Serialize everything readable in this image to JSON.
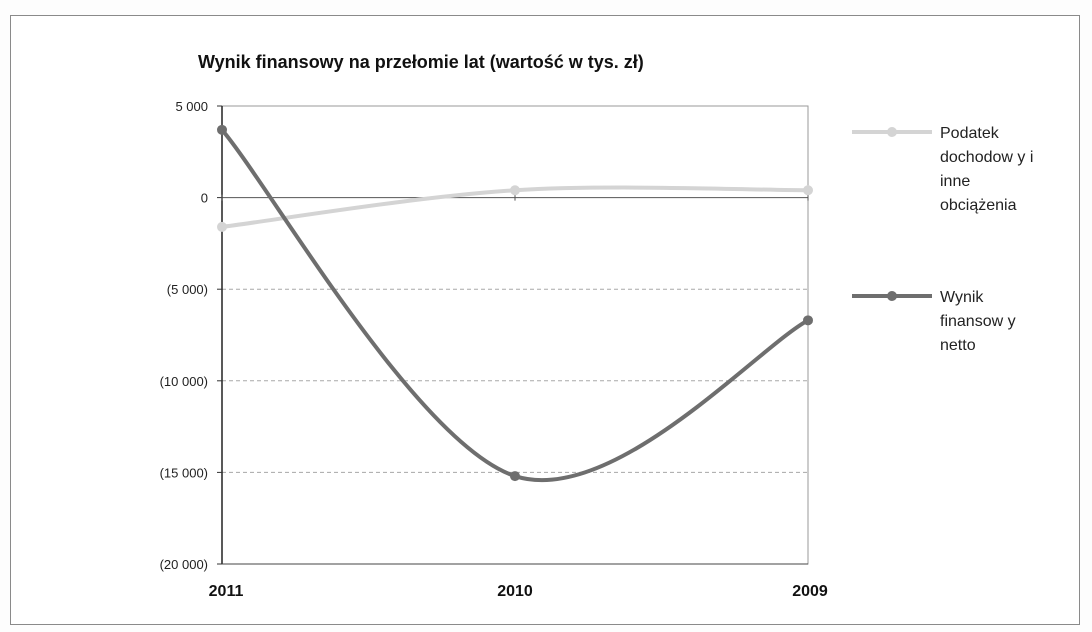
{
  "chart_data": {
    "type": "line",
    "title": "Wynik finansowy na przełomie lat (wartość w tys. zł)",
    "categories": [
      "2011",
      "2010",
      "2009"
    ],
    "ylim": [
      -20000,
      5000
    ],
    "yticks": [
      5000,
      0,
      -5000,
      -10000,
      -15000,
      -20000
    ],
    "ytick_labels": [
      "5 000",
      "0",
      "(5 000)",
      "(10 000)",
      "(15 000)",
      "(20 000)"
    ],
    "grid": "horizontal dashed",
    "legend_position": "right",
    "series": [
      {
        "name": "Podatek dochodowy i inne obciążenia",
        "legend_lines": [
          "Podatek",
          "dochodow y i",
          "inne",
          "obciążenia"
        ],
        "values": [
          -1600,
          400,
          400
        ],
        "color": "#d4d4d4"
      },
      {
        "name": "Wynik finansowy netto",
        "legend_lines": [
          "Wynik",
          "finansow y",
          "netto"
        ],
        "values": [
          3700,
          -15200,
          -6700
        ],
        "color": "#6e6e6e"
      }
    ]
  }
}
